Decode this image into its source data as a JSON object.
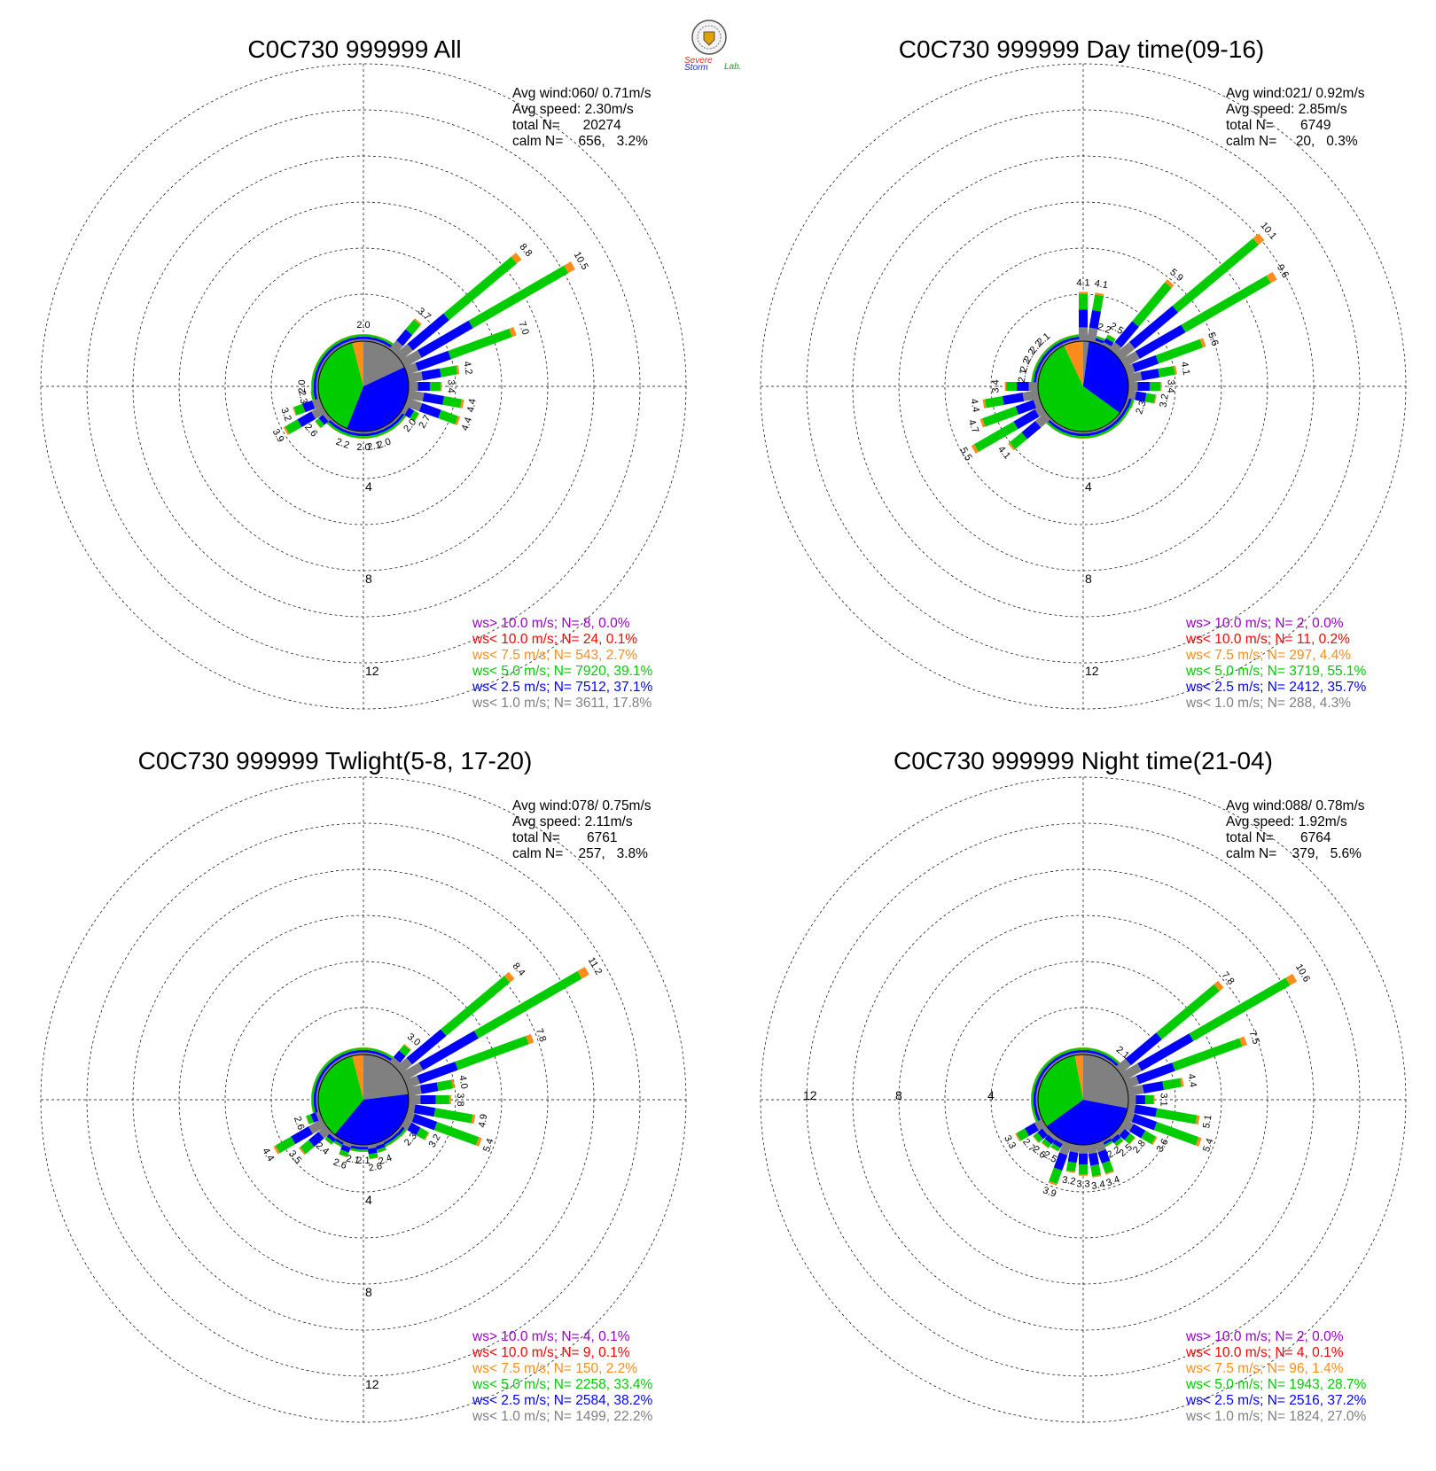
{
  "logo": {
    "text_severe": "Severe",
    "text_storm": "Storm",
    "text_lab": "Lab.",
    "colors": {
      "severe": "#e03020",
      "storm": "#1530c0",
      "lab": "#20a020"
    }
  },
  "colors": {
    "gt10": "#9a00c8",
    "lt10": "#ff0000",
    "lt7_5": "#ff8c1a",
    "lt5": "#00cc00",
    "lt2_5": "#0000ff",
    "lt1": "#808080",
    "grid": "#000000"
  },
  "chart_data": [
    {
      "type": "polar-bar",
      "title": "C0C730 999999 All",
      "info": {
        "avg_wind": "Avg wind:060/ 0.71m/s",
        "avg_speed": "Avg speed: 2.30m/s",
        "total": "total N=      20274",
        "calm": "calm N=    656,   3.2%"
      },
      "ring_labels": [
        "4",
        "8",
        "12"
      ],
      "ring_values": [
        4,
        8,
        12
      ],
      "ring_label_position": "bottom",
      "legend": [
        {
          "text": "ws> 10.0 m/s; N=    8,  0.0%",
          "color": "gt10"
        },
        {
          "text": "ws< 10.0 m/s; N=   24,  0.1%",
          "color": "lt10"
        },
        {
          "text": "ws<  7.5 m/s; N=  543,  2.7%",
          "color": "lt7_5"
        },
        {
          "text": "ws<  5.0 m/s; N= 7920, 39.1%",
          "color": "lt5"
        },
        {
          "text": "ws<  2.5 m/s; N= 7512, 37.1%",
          "color": "lt2_5"
        },
        {
          "text": "ws<  1.0 m/s; N= 3611, 17.8%",
          "color": "lt1"
        }
      ],
      "calm_pie": {
        "gray": 0.18,
        "blue": 0.38,
        "green": 0.4,
        "orange": 0.04
      },
      "sectors": [
        [
          0,
          2.0,
          "2.0"
        ],
        [
          10,
          1.8
        ],
        [
          20,
          1.9
        ],
        [
          30,
          2.2
        ],
        [
          40,
          3.7,
          "3.7"
        ],
        [
          50,
          8.8,
          "8.8"
        ],
        [
          60,
          10.5,
          "10.5"
        ],
        [
          70,
          7.0,
          "7.0"
        ],
        [
          80,
          4.2,
          "4.2"
        ],
        [
          90,
          3.4,
          "3.4"
        ],
        [
          100,
          4.4,
          "4.4"
        ],
        [
          110,
          4.4,
          "4.4"
        ],
        [
          120,
          2.7,
          "2.7"
        ],
        [
          130,
          2.0,
          "2.0"
        ],
        [
          140,
          1.9
        ],
        [
          150,
          1.8
        ],
        [
          160,
          2.0,
          "2.0"
        ],
        [
          170,
          2.1,
          "2.1"
        ],
        [
          180,
          2.0,
          "2.0"
        ],
        [
          190,
          1.9
        ],
        [
          200,
          2.2,
          "2.2"
        ],
        [
          210,
          1.8
        ],
        [
          220,
          2.0
        ],
        [
          230,
          2.6,
          "2.6"
        ],
        [
          240,
          3.9,
          "3.9"
        ],
        [
          250,
          3.2,
          "3.2"
        ],
        [
          260,
          2.3,
          "2.3"
        ],
        [
          270,
          2.0,
          "2.0"
        ],
        [
          280,
          1.8
        ],
        [
          290,
          1.6
        ],
        [
          300,
          1.6
        ],
        [
          310,
          1.7
        ],
        [
          320,
          1.8
        ],
        [
          330,
          1.8
        ],
        [
          340,
          1.9
        ],
        [
          350,
          1.9
        ]
      ]
    },
    {
      "type": "polar-bar",
      "title": "C0C730 999999 Day time(09-16)",
      "info": {
        "avg_wind": "Avg wind:021/ 0.92m/s",
        "avg_speed": "Avg speed: 2.85m/s",
        "total": "total N=       6749",
        "calm": "calm N=     20,   0.3%"
      },
      "ring_labels": [
        "4",
        "8",
        "12"
      ],
      "ring_values": [
        4,
        8,
        12
      ],
      "ring_label_position": "bottom",
      "legend": [
        {
          "text": "ws> 10.0 m/s; N=    2,  0.0%",
          "color": "gt10"
        },
        {
          "text": "ws< 10.0 m/s; N=   11,  0.2%",
          "color": "lt10"
        },
        {
          "text": "ws<  7.5 m/s; N=  297,  4.4%",
          "color": "lt7_5"
        },
        {
          "text": "ws<  5.0 m/s; N= 3719, 55.1%",
          "color": "lt5"
        },
        {
          "text": "ws<  2.5 m/s; N= 2412, 35.7%",
          "color": "lt2_5"
        },
        {
          "text": "ws<  1.0 m/s; N=  288,  4.3%",
          "color": "lt1"
        }
      ],
      "calm_pie": {
        "gray": 0.02,
        "blue": 0.33,
        "green": 0.58,
        "orange": 0.07
      },
      "sectors": [
        [
          0,
          4.1,
          "4.1"
        ],
        [
          10,
          4.1,
          "4.1"
        ],
        [
          20,
          2.2,
          "2.2"
        ],
        [
          30,
          2.5,
          "2.5"
        ],
        [
          40,
          5.9,
          "5.9"
        ],
        [
          50,
          10.1,
          "10.1"
        ],
        [
          60,
          9.6,
          "9.6"
        ],
        [
          70,
          5.6,
          "5.6"
        ],
        [
          80,
          4.1,
          "4.1"
        ],
        [
          90,
          3.4,
          "3.4"
        ],
        [
          100,
          3.2,
          "3.2"
        ],
        [
          110,
          2.3,
          "2.3"
        ],
        [
          120,
          1.6
        ],
        [
          130,
          1.3
        ],
        [
          140,
          1.0
        ],
        [
          150,
          0.9
        ],
        [
          160,
          0.9
        ],
        [
          170,
          0.8
        ],
        [
          180,
          0.9
        ],
        [
          190,
          0.8
        ],
        [
          200,
          0.9
        ],
        [
          210,
          1.0
        ],
        [
          220,
          1.3
        ],
        [
          230,
          4.1,
          "4.1"
        ],
        [
          240,
          5.5,
          "5.5"
        ],
        [
          250,
          4.7,
          "4.7"
        ],
        [
          260,
          4.4,
          "4.4"
        ],
        [
          270,
          3.4,
          "3.4"
        ],
        [
          280,
          2.1,
          "2.1"
        ],
        [
          290,
          2.2,
          "2.2"
        ],
        [
          300,
          2.2,
          "2.2"
        ],
        [
          310,
          2.2,
          "2.2"
        ],
        [
          320,
          2.1,
          "2.1"
        ],
        [
          330,
          1.9
        ],
        [
          340,
          2.0
        ],
        [
          350,
          2.1
        ]
      ]
    },
    {
      "type": "polar-bar",
      "title": "C0C730 999999 Twlight(5-8, 17-20)",
      "info": {
        "avg_wind": "Avg wind:078/ 0.75m/s",
        "avg_speed": "Avg speed: 2.11m/s",
        "total": "total N=       6761",
        "calm": "calm N=    257,   3.8%"
      },
      "ring_labels": [
        "4",
        "8",
        "12"
      ],
      "ring_values": [
        4,
        8,
        12
      ],
      "ring_label_position": "bottom",
      "legend": [
        {
          "text": "ws> 10.0 m/s; N=    4,  0.1%",
          "color": "gt10"
        },
        {
          "text": "ws< 10.0 m/s; N=    9,  0.1%",
          "color": "lt10"
        },
        {
          "text": "ws<  7.5 m/s; N=  150,  2.2%",
          "color": "lt7_5"
        },
        {
          "text": "ws<  5.0 m/s; N= 2258, 33.4%",
          "color": "lt5"
        },
        {
          "text": "ws<  2.5 m/s; N= 2584, 38.2%",
          "color": "lt2_5"
        },
        {
          "text": "ws<  1.0 m/s; N= 1499, 22.2%",
          "color": "lt1"
        }
      ],
      "calm_pie": {
        "gray": 0.23,
        "blue": 0.38,
        "green": 0.35,
        "orange": 0.04
      },
      "sectors": [
        [
          0,
          1.6
        ],
        [
          10,
          1.6
        ],
        [
          20,
          1.8
        ],
        [
          30,
          2.0
        ],
        [
          40,
          3.0,
          "3.0"
        ],
        [
          50,
          8.4,
          "8.4"
        ],
        [
          60,
          11.2,
          "11.2"
        ],
        [
          70,
          7.8,
          "7.8"
        ],
        [
          80,
          4.0,
          "4.0"
        ],
        [
          90,
          3.8,
          "3.8"
        ],
        [
          100,
          4.9,
          "4.9"
        ],
        [
          110,
          5.4,
          "5.4"
        ],
        [
          120,
          3.2,
          "3.2"
        ],
        [
          130,
          2.3,
          "2.3"
        ],
        [
          140,
          2.0
        ],
        [
          150,
          2.2
        ],
        [
          160,
          2.4,
          "2.4"
        ],
        [
          170,
          2.6,
          "2.6"
        ],
        [
          180,
          2.1,
          "2.1"
        ],
        [
          190,
          2.1,
          "2.1"
        ],
        [
          200,
          2.6,
          "2.6"
        ],
        [
          210,
          2.2
        ],
        [
          220,
          2.4,
          "2.4"
        ],
        [
          230,
          3.5,
          "3.5"
        ],
        [
          240,
          4.4,
          "4.4"
        ],
        [
          250,
          2.6,
          "2.6"
        ],
        [
          260,
          1.5
        ],
        [
          270,
          1.4
        ],
        [
          280,
          1.5
        ],
        [
          290,
          1.4
        ],
        [
          300,
          1.6
        ],
        [
          310,
          1.5
        ],
        [
          320,
          1.6
        ],
        [
          330,
          1.7
        ],
        [
          340,
          1.6
        ],
        [
          350,
          1.6
        ]
      ]
    },
    {
      "type": "polar-bar",
      "title": "C0C730 999999 Night time(21-04)",
      "info": {
        "avg_wind": "Avg wind:088/ 0.78m/s",
        "avg_speed": "Avg speed: 1.92m/s",
        "total": "total N=       6764",
        "calm": "calm N=    379,   5.6%"
      },
      "ring_labels": [
        "4",
        "8",
        "12"
      ],
      "ring_values": [
        4,
        8,
        12
      ],
      "ring_label_position": "left",
      "legend": [
        {
          "text": "ws> 10.0 m/s; N=    2,  0.0%",
          "color": "gt10"
        },
        {
          "text": "ws< 10.0 m/s; N=    4,  0.1%",
          "color": "lt10"
        },
        {
          "text": "ws<  7.5 m/s; N=   96,  1.4%",
          "color": "lt7_5"
        },
        {
          "text": "ws<  5.0 m/s; N= 1943, 28.7%",
          "color": "lt5"
        },
        {
          "text": "ws<  2.5 m/s; N= 2516, 37.2%",
          "color": "lt2_5"
        },
        {
          "text": "ws<  1.0 m/s; N= 1824, 27.0%",
          "color": "lt1"
        }
      ],
      "calm_pie": {
        "gray": 0.28,
        "blue": 0.37,
        "green": 0.32,
        "orange": 0.03
      },
      "sectors": [
        [
          0,
          1.3
        ],
        [
          10,
          1.4
        ],
        [
          20,
          1.5
        ],
        [
          30,
          1.8
        ],
        [
          40,
          2.1,
          "2.1"
        ],
        [
          50,
          7.8,
          "7.8"
        ],
        [
          60,
          10.6,
          "10.6"
        ],
        [
          70,
          7.5,
          "7.5"
        ],
        [
          80,
          4.4,
          "4.4"
        ],
        [
          90,
          3.1,
          "3.1"
        ],
        [
          100,
          5.1,
          "5.1"
        ],
        [
          110,
          5.4,
          "5.4"
        ],
        [
          120,
          3.6,
          "3.6"
        ],
        [
          130,
          2.8,
          "2.8"
        ],
        [
          140,
          2.5,
          "2.5"
        ],
        [
          150,
          2.2,
          "2.2"
        ],
        [
          160,
          3.4,
          "3.4"
        ],
        [
          170,
          3.4,
          "3.4"
        ],
        [
          180,
          3.3,
          "3.3"
        ],
        [
          190,
          3.2,
          "3.2"
        ],
        [
          200,
          3.9,
          "3.9"
        ],
        [
          210,
          2.5,
          "2.5"
        ],
        [
          220,
          2.6,
          "2.6"
        ],
        [
          230,
          2.7,
          "2.7"
        ],
        [
          240,
          3.3,
          "3.3"
        ],
        [
          250,
          1.4
        ],
        [
          260,
          1.2
        ],
        [
          270,
          1.1
        ],
        [
          280,
          1.1
        ],
        [
          290,
          1.1
        ],
        [
          300,
          1.2
        ],
        [
          310,
          1.2
        ],
        [
          320,
          1.2
        ],
        [
          330,
          1.3
        ],
        [
          340,
          1.3
        ],
        [
          350,
          1.3
        ]
      ]
    }
  ]
}
